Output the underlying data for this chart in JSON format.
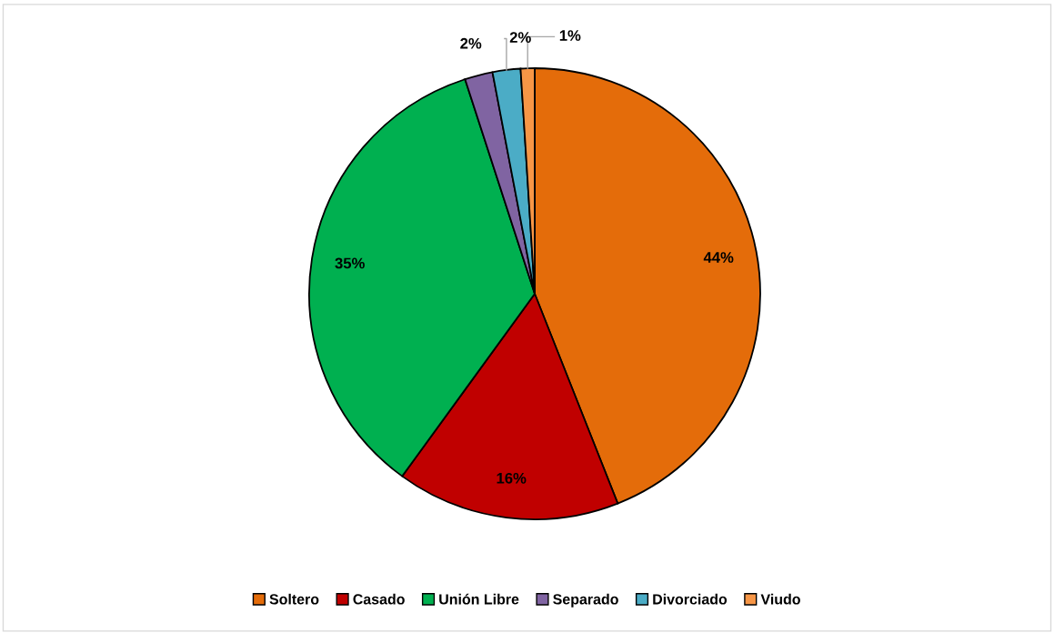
{
  "chart_data": {
    "type": "pie",
    "categories": [
      "Soltero",
      "Casado",
      "Unión Libre",
      "Separado",
      "Divorciado",
      "Viudo"
    ],
    "values": [
      44,
      16,
      35,
      2,
      2,
      1
    ],
    "colors": [
      "#e46c0a",
      "#c00000",
      "#00b050",
      "#8064a2",
      "#4bacc6",
      "#f79646"
    ],
    "value_labels": [
      "44%",
      "16%",
      "35%",
      "2%",
      "2%",
      "1%"
    ],
    "legend": "bottom"
  }
}
